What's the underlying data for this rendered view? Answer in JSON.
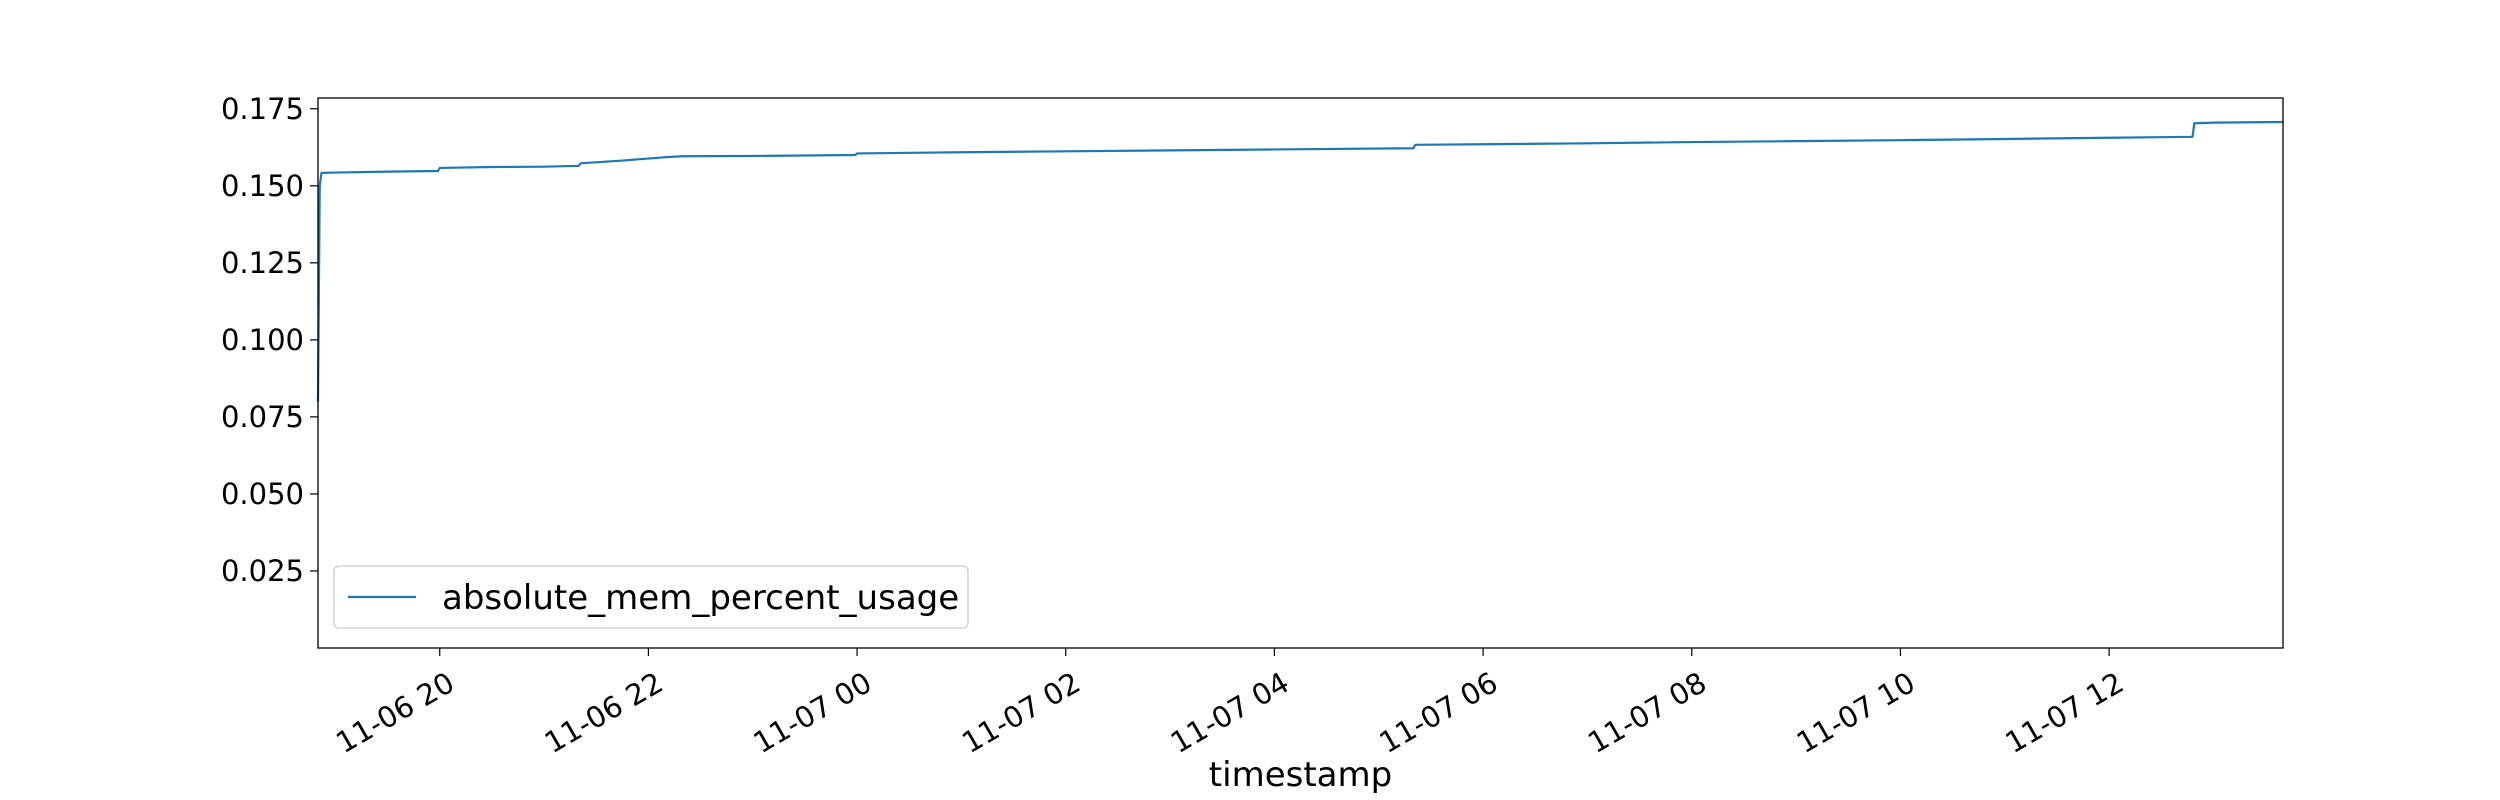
{
  "chart_data": {
    "type": "line",
    "xlabel": "timestamp",
    "ylabel": "",
    "x_range": [
      "2022-11-06 18:50",
      "2022-11-07 13:40"
    ],
    "ylim": [
      0.0,
      0.1785
    ],
    "x_ticks": [
      {
        "value": "2022-11-06 20:00",
        "label": "11-06 20"
      },
      {
        "value": "2022-11-06 22:00",
        "label": "11-06 22"
      },
      {
        "value": "2022-11-07 00:00",
        "label": "11-07 00"
      },
      {
        "value": "2022-11-07 02:00",
        "label": "11-07 02"
      },
      {
        "value": "2022-11-07 04:00",
        "label": "11-07 04"
      },
      {
        "value": "2022-11-07 06:00",
        "label": "11-07 06"
      },
      {
        "value": "2022-11-07 08:00",
        "label": "11-07 08"
      },
      {
        "value": "2022-11-07 10:00",
        "label": "11-07 10"
      },
      {
        "value": "2022-11-07 12:00",
        "label": "11-07 12"
      }
    ],
    "y_ticks": [
      {
        "value": 0.025,
        "label": "0.025"
      },
      {
        "value": 0.05,
        "label": "0.050"
      },
      {
        "value": 0.075,
        "label": "0.075"
      },
      {
        "value": 0.1,
        "label": "0.100"
      },
      {
        "value": 0.125,
        "label": "0.125"
      },
      {
        "value": 0.15,
        "label": "0.150"
      },
      {
        "value": 0.175,
        "label": "0.175"
      }
    ],
    "grid": false,
    "legend_position": "lower-left",
    "series": [
      {
        "name": "absolute_mem_percent_usage",
        "color": "#1f77b4",
        "points": [
          [
            "2022-11-06 18:50",
            0.08
          ],
          [
            "2022-11-06 18:51",
            0.15
          ],
          [
            "2022-11-06 18:52",
            0.1542
          ],
          [
            "2022-11-06 19:00",
            0.1543
          ],
          [
            "2022-11-06 19:30",
            0.1546
          ],
          [
            "2022-11-06 19:59",
            0.1548
          ],
          [
            "2022-11-06 20:00",
            0.1558
          ],
          [
            "2022-11-06 20:30",
            0.1561
          ],
          [
            "2022-11-06 21:00",
            0.1562
          ],
          [
            "2022-11-06 21:20",
            0.1565
          ],
          [
            "2022-11-06 21:21",
            0.1573
          ],
          [
            "2022-11-06 21:45",
            0.1582
          ],
          [
            "2022-11-06 22:10",
            0.1593
          ],
          [
            "2022-11-06 22:20",
            0.1596
          ],
          [
            "2022-11-06 23:00",
            0.1597
          ],
          [
            "2022-11-06 23:59",
            0.16
          ],
          [
            "2022-11-07 00:00",
            0.1605
          ],
          [
            "2022-11-07 01:00",
            0.1609
          ],
          [
            "2022-11-07 02:00",
            0.1612
          ],
          [
            "2022-11-07 03:00",
            0.1615
          ],
          [
            "2022-11-07 04:00",
            0.1618
          ],
          [
            "2022-11-07 05:20",
            0.1622
          ],
          [
            "2022-11-07 05:21",
            0.1633
          ],
          [
            "2022-11-07 06:00",
            0.1635
          ],
          [
            "2022-11-07 07:00",
            0.1638
          ],
          [
            "2022-11-07 08:00",
            0.1642
          ],
          [
            "2022-11-07 09:00",
            0.1645
          ],
          [
            "2022-11-07 10:00",
            0.1648
          ],
          [
            "2022-11-07 11:00",
            0.1652
          ],
          [
            "2022-11-07 12:00",
            0.1656
          ],
          [
            "2022-11-07 12:48",
            0.1659
          ],
          [
            "2022-11-07 12:49",
            0.1703
          ],
          [
            "2022-11-07 13:00",
            0.1705
          ],
          [
            "2022-11-07 13:40",
            0.1707
          ]
        ]
      }
    ]
  }
}
